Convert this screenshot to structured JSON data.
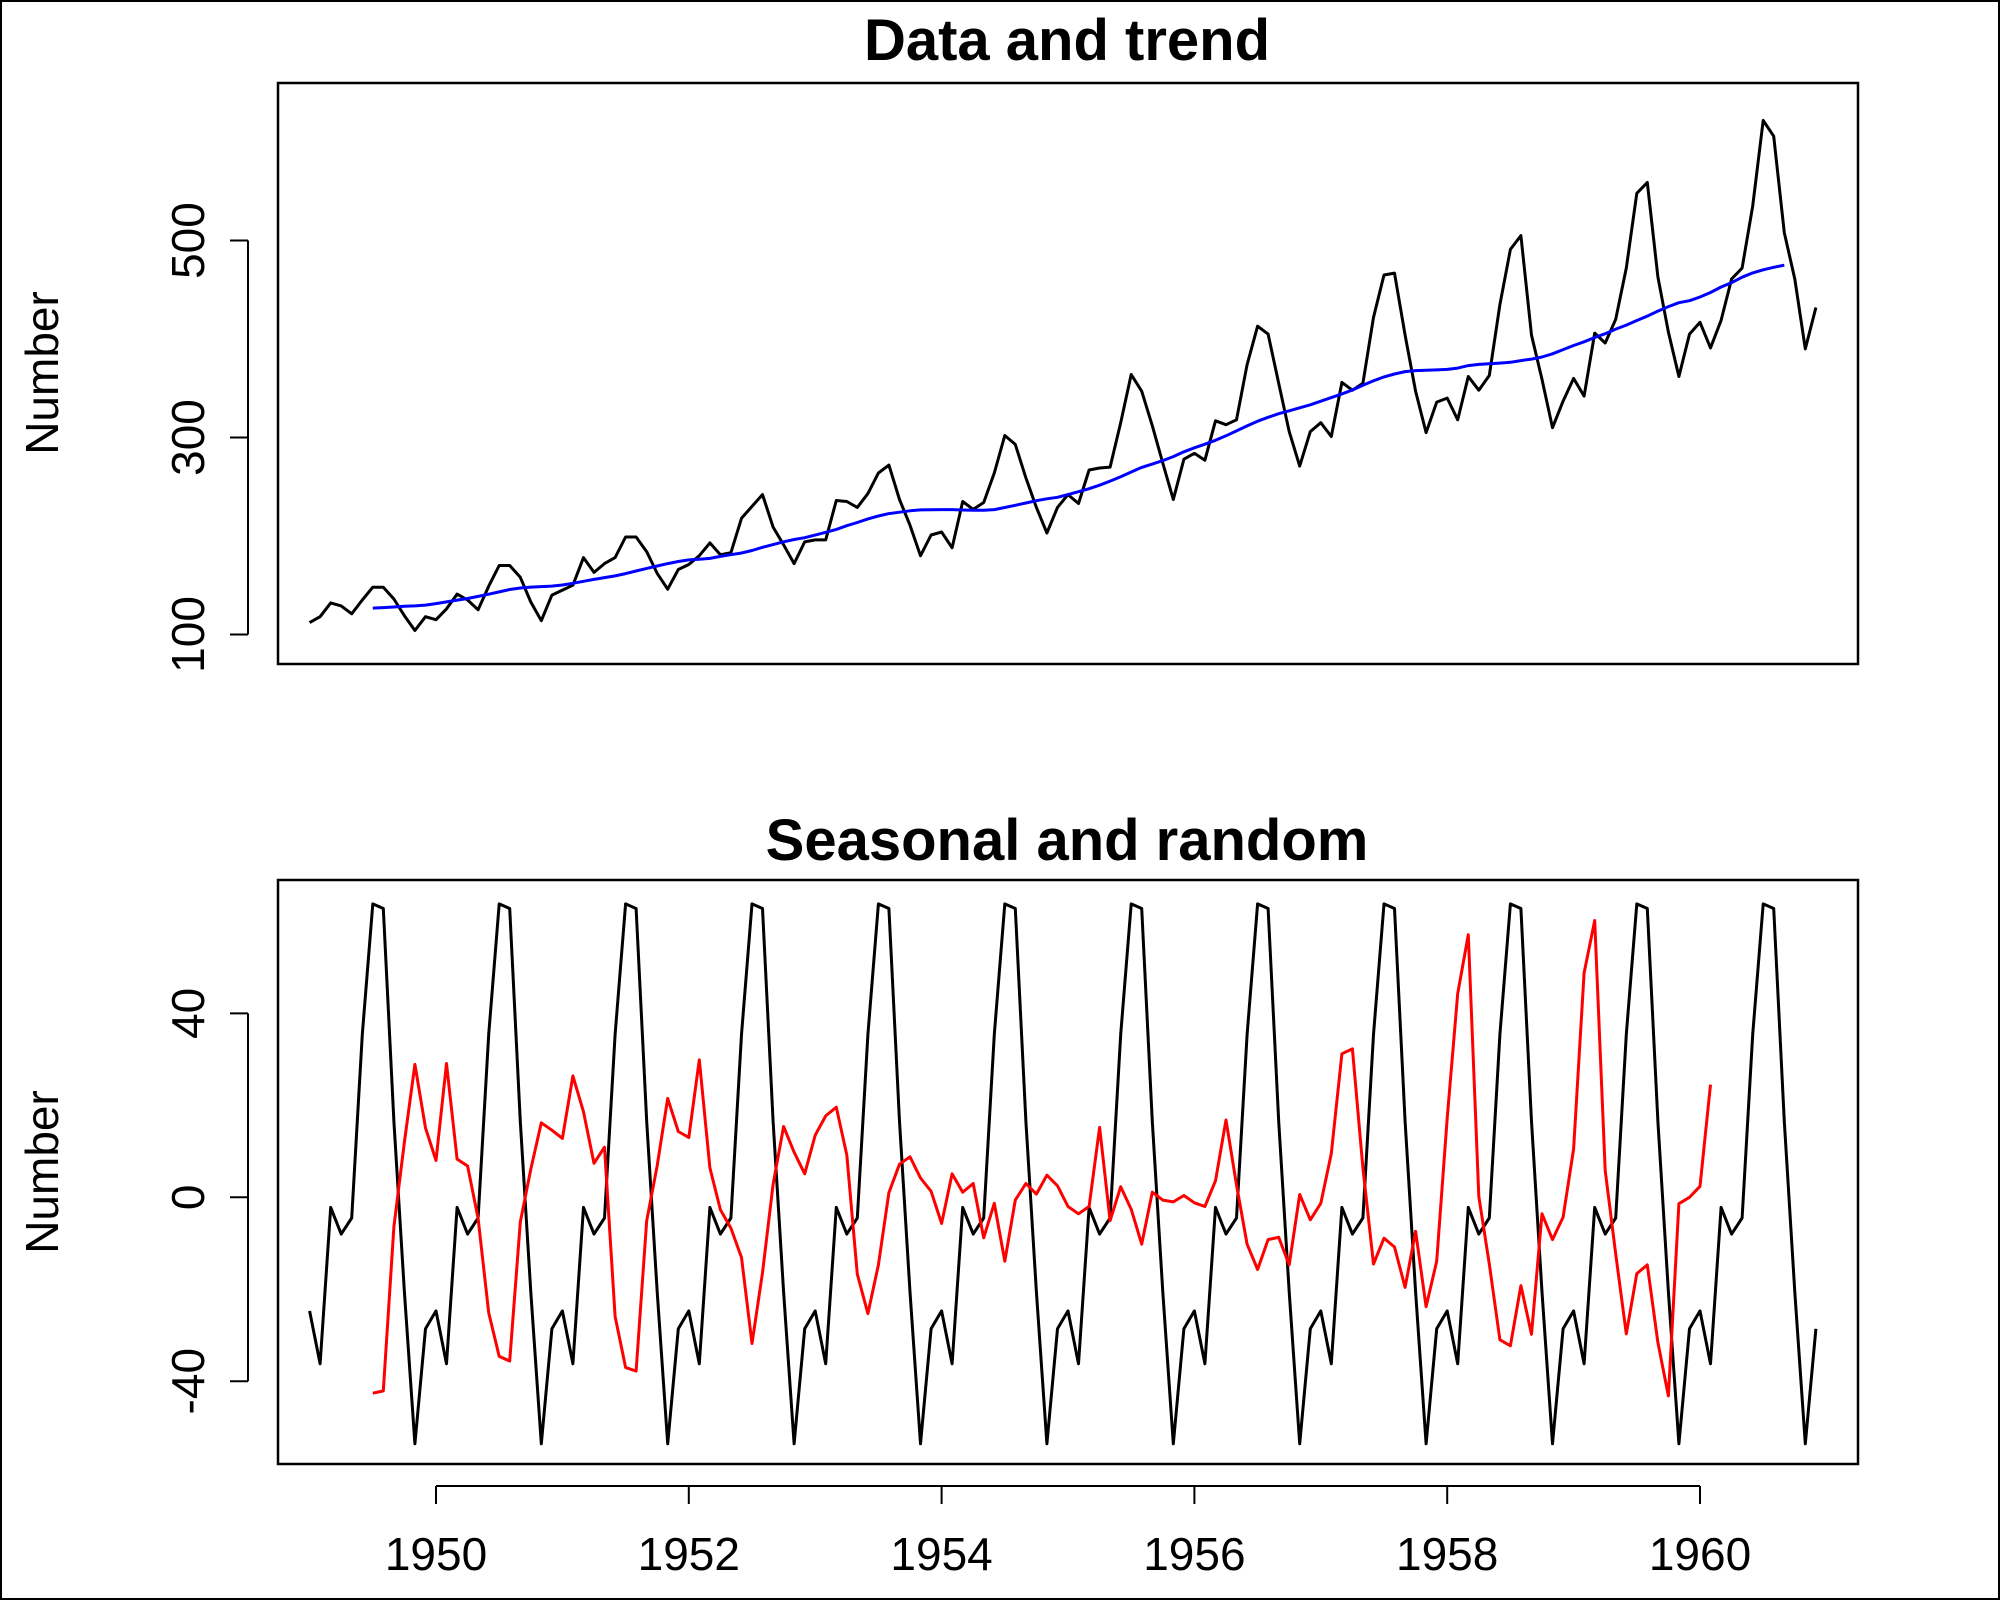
{
  "chart_data": [
    {
      "type": "line",
      "title": "Data and trend",
      "xlabel": "",
      "ylabel": "Number",
      "xlim": [
        1948.75,
        1961.25
      ],
      "ylim": [
        70,
        660
      ],
      "yticks": [
        100,
        300,
        500
      ],
      "ytick_labels": [
        "100",
        "300",
        "500"
      ],
      "show_x_axis": false,
      "grid": false,
      "series": [
        {
          "color": "#000000",
          "x_start": 1949.0,
          "x_step": 0.0833333,
          "values": [
            112,
            118,
            132,
            129,
            121,
            135,
            148,
            148,
            136,
            119,
            104,
            118,
            115,
            126,
            141,
            135,
            125,
            149,
            170,
            170,
            158,
            133,
            114,
            140,
            145,
            150,
            178,
            163,
            172,
            178,
            199,
            199,
            184,
            162,
            146,
            166,
            171,
            180,
            193,
            181,
            183,
            218,
            230,
            242,
            209,
            191,
            172,
            194,
            196,
            196,
            236,
            235,
            229,
            243,
            264,
            272,
            237,
            211,
            180,
            201,
            204,
            188,
            235,
            227,
            234,
            264,
            302,
            293,
            259,
            229,
            203,
            229,
            242,
            233,
            267,
            269,
            270,
            315,
            364,
            347,
            312,
            274,
            237,
            278,
            284,
            277,
            317,
            313,
            318,
            374,
            413,
            405,
            355,
            306,
            271,
            306,
            315,
            301,
            356,
            348,
            355,
            422,
            465,
            467,
            404,
            347,
            305,
            336,
            340,
            318,
            362,
            348,
            363,
            435,
            491,
            505,
            404,
            359,
            310,
            337,
            360,
            342,
            406,
            396,
            420,
            472,
            548,
            559,
            463,
            407,
            362,
            405,
            417,
            391,
            419,
            461,
            472,
            535,
            622,
            606,
            508,
            461,
            390,
            432
          ]
        },
        {
          "color": "#0000ff",
          "x_start": 1949.5,
          "x_step": 0.0833333,
          "values": [
            126.8,
            127.3,
            127.9,
            128.6,
            129.0,
            129.8,
            131.3,
            133.1,
            134.9,
            136.5,
            138.6,
            140.9,
            143.2,
            145.7,
            147.2,
            148.1,
            148.6,
            149.1,
            150.2,
            152.0,
            154.0,
            155.9,
            157.7,
            159.5,
            161.8,
            164.4,
            167.1,
            169.5,
            172.0,
            174.1,
            175.7,
            176.3,
            177.2,
            179.3,
            181.0,
            182.7,
            185.3,
            188.5,
            191.2,
            194.1,
            196.4,
            198.3,
            200.9,
            203.7,
            206.7,
            210.4,
            213.7,
            217.3,
            220.3,
            222.7,
            224.2,
            225.6,
            226.5,
            226.7,
            226.8,
            226.8,
            226.4,
            226.2,
            226.1,
            226.8,
            228.9,
            231.2,
            233.5,
            235.8,
            237.8,
            239.3,
            242.0,
            245.0,
            248.0,
            251.6,
            255.7,
            260.2,
            265.0,
            269.6,
            273.0,
            276.5,
            280.6,
            285.5,
            289.5,
            293.2,
            297.2,
            301.7,
            306.7,
            311.8,
            316.6,
            320.5,
            324.2,
            327.1,
            330.2,
            333.2,
            336.9,
            340.5,
            344.3,
            348.2,
            353.0,
            357.6,
            361.5,
            364.5,
            366.9,
            367.9,
            368.3,
            368.7,
            369.2,
            370.5,
            373.0,
            374.2,
            374.8,
            375.6,
            376.4,
            378.1,
            379.6,
            381.8,
            385.0,
            389.3,
            393.4,
            397.2,
            401.6,
            405.4,
            410.1,
            414.2,
            418.8,
            423.3,
            428.4,
            432.9,
            436.9,
            438.9,
            442.7,
            447.3,
            452.8,
            457.2,
            462.8,
            467.2,
            470.3,
            472.8,
            475.0
          ]
        }
      ]
    },
    {
      "type": "line",
      "title": "Seasonal and random",
      "xlabel": "",
      "ylabel": "Number",
      "xlim": [
        1948.75,
        1961.25
      ],
      "ylim": [
        -58,
        69
      ],
      "yticks": [
        -40,
        0,
        40
      ],
      "ytick_labels": [
        "-40",
        "0",
        "40"
      ],
      "xticks": [
        1950,
        1952,
        1954,
        1956,
        1958,
        1960
      ],
      "xtick_labels": [
        "1950",
        "1952",
        "1954",
        "1956",
        "1958",
        "1960"
      ],
      "grid": false,
      "series": [
        {
          "color": "#000000",
          "x_start": 1949.0,
          "x_step": 0.0833333,
          "pattern_repeats": 12,
          "pattern": [
            -24.7,
            -36.2,
            -2.2,
            -8.0,
            -4.5,
            35.4,
            63.8,
            62.8,
            16.5,
            -20.6,
            -53.6,
            -28.6
          ]
        },
        {
          "color": "#ff0000",
          "x_start": 1949.5,
          "x_step": 0.0833333,
          "values": [
            -42.6,
            -42.1,
            -6.4,
            12.0,
            28.9,
            15.1,
            8.0,
            29.1,
            8.3,
            6.8,
            -4.6,
            -25.1,
            -34.6,
            -35.6,
            -5.4,
            6.1,
            16.2,
            14.6,
            12.8,
            26.4,
            18.6,
            7.4,
            10.9,
            -25.9,
            -37.0,
            -37.8,
            -5.1,
            6.9,
            21.5,
            14.3,
            13.0,
            29.9,
            6.4,
            -2.7,
            -6.7,
            -13.1,
            -31.8,
            -16.4,
            2.8,
            15.4,
            9.8,
            5.1,
            13.5,
            17.7,
            19.6,
            9.2,
            -16.7,
            -25.3,
            -14.7,
            1.0,
            7.2,
            8.8,
            4.2,
            1.3,
            -5.7,
            5.1,
            1.1,
            3.0,
            -8.8,
            -1.3,
            -13.9,
            -0.6,
            3.0,
            0.7,
            4.8,
            2.5,
            -2.0,
            -3.6,
            -2.0,
            15.2,
            -5.1,
            2.3,
            -2.6,
            -10.2,
            1.1,
            -0.6,
            -1.0,
            0.4,
            -1.2,
            -2.0,
            3.6,
            16.8,
            2.7,
            -10.2,
            -15.7,
            -9.2,
            -8.7,
            -14.7,
            0.6,
            -4.9,
            -1.3,
            9.5,
            31.2,
            32.3,
            6.4,
            -14.5,
            -8.9,
            -10.8,
            -19.6,
            -7.4,
            -23.8,
            -13.9,
            17.2,
            44.3,
            57.1,
            0.2,
            -14.5,
            -31.0,
            -32.3,
            -19.2,
            -29.8,
            -3.6,
            -9.2,
            -4.3,
            10.5,
            48.8,
            60.2,
            5.8,
            -12.3,
            -29.7,
            -16.6,
            -14.7,
            -31.6,
            -43.2,
            -1.4,
            0.0,
            2.4,
            24.5
          ]
        }
      ]
    }
  ]
}
